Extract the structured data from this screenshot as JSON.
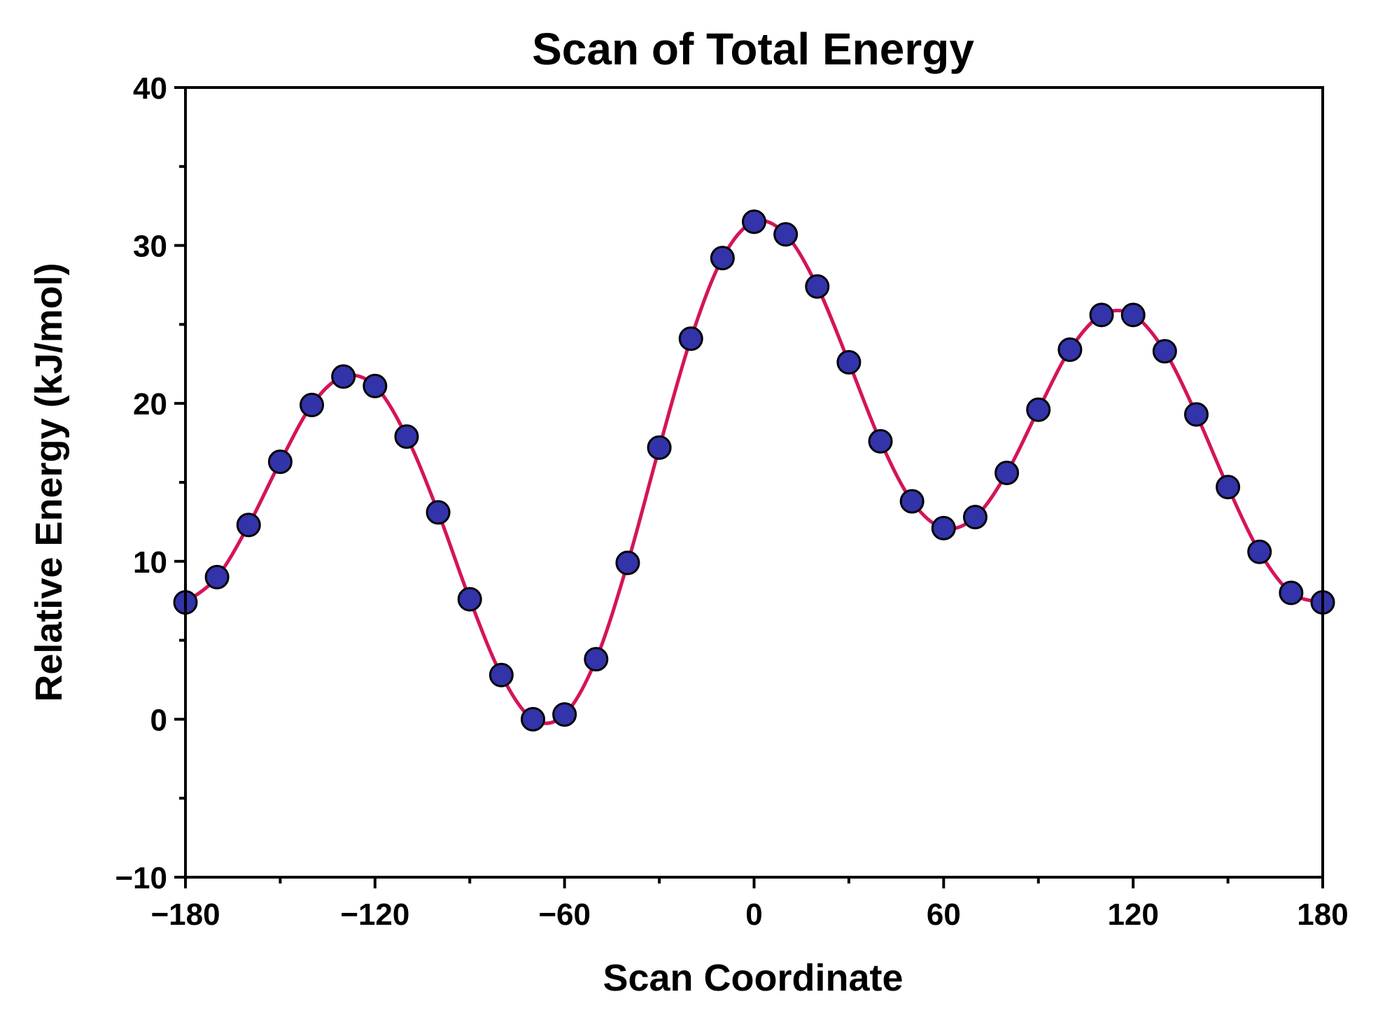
{
  "chart_data": {
    "type": "line",
    "title": "Scan of Total Energy",
    "xlabel": "Scan Coordinate",
    "ylabel": "Relative Energy (kJ/mol)",
    "xlim": [
      -180,
      180
    ],
    "ylim": [
      -10,
      40
    ],
    "x_major_ticks": [
      -180,
      -120,
      -60,
      0,
      60,
      120,
      180
    ],
    "x_minor_ticks": [
      -150,
      -90,
      -30,
      30,
      90,
      150
    ],
    "y_major_ticks": [
      -10,
      0,
      10,
      20,
      30,
      40
    ],
    "y_minor_ticks": [
      -5,
      5,
      15,
      25,
      35
    ],
    "x_tick_labels": [
      "−180",
      "−120",
      "−60",
      "0",
      "60",
      "120",
      "180"
    ],
    "y_tick_labels": [
      "−10",
      "0",
      "10",
      "20",
      "30",
      "40"
    ],
    "grid": false,
    "legend": "none",
    "series": [
      {
        "x": [
          -180,
          -170,
          -160,
          -150,
          -140,
          -130,
          -120,
          -110,
          -100,
          -90,
          -80,
          -70,
          -60,
          -50,
          -40,
          -30,
          -20,
          -10,
          0,
          10,
          20,
          30,
          40,
          50,
          60,
          70,
          80,
          90,
          100,
          110,
          120,
          130,
          140,
          150,
          160,
          170,
          180
        ],
        "y": [
          7.4,
          9.0,
          12.3,
          16.3,
          19.9,
          21.7,
          21.1,
          17.9,
          13.1,
          7.6,
          2.8,
          0.0,
          0.3,
          3.8,
          9.9,
          17.2,
          24.1,
          29.2,
          31.5,
          30.7,
          27.4,
          22.6,
          17.6,
          13.8,
          12.1,
          12.8,
          15.6,
          19.6,
          23.4,
          25.6,
          25.6,
          23.3,
          19.3,
          14.7,
          10.6,
          8.0,
          7.4
        ],
        "line_color": "#d4145a",
        "marker_fill": "#3333aa",
        "marker_edge": "#000000"
      }
    ]
  }
}
